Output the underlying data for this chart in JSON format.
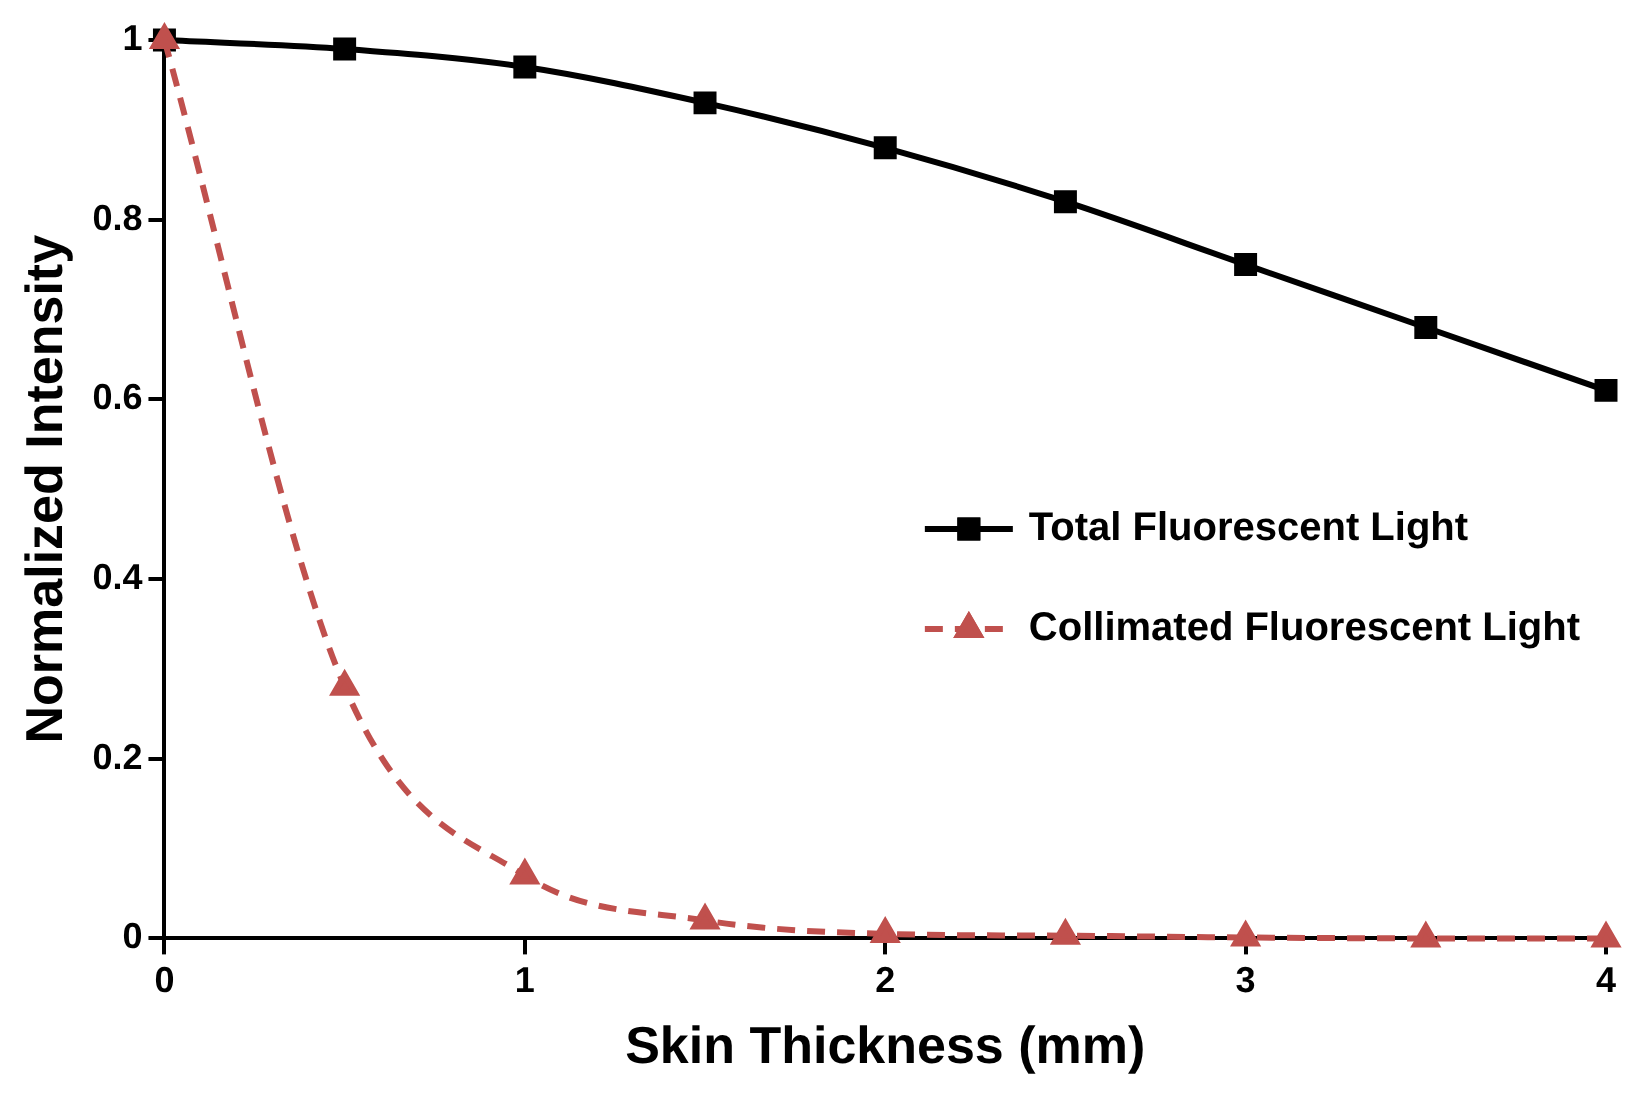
{
  "chart_data": {
    "type": "line",
    "xlabel": "Skin Thickness (mm)",
    "ylabel": "Normalized Intensity",
    "x": [
      0,
      0.5,
      1,
      1.5,
      2,
      2.5,
      3,
      3.5,
      4
    ],
    "xlim": [
      0,
      4
    ],
    "xticks": [
      0,
      1,
      2,
      3,
      4
    ],
    "ylim": [
      0,
      1
    ],
    "yticks": [
      0,
      0.2,
      0.4,
      0.6,
      0.8,
      1
    ],
    "grid": false,
    "legend": "right",
    "series": [
      {
        "name": "Total Fluorescent Light",
        "color": "#000000",
        "marker": "square",
        "line_style": "solid",
        "values": [
          1,
          0.99,
          0.97,
          0.93,
          0.88,
          0.82,
          0.75,
          0.68,
          0.61
        ]
      },
      {
        "name": "Collimated Fluorescent Light",
        "color": "#c0504d",
        "marker": "triangle",
        "line_style": "dashed",
        "values": [
          1,
          0.28,
          0.07,
          0.02,
          0.005,
          0.003,
          0.001,
          0,
          0
        ]
      }
    ]
  }
}
